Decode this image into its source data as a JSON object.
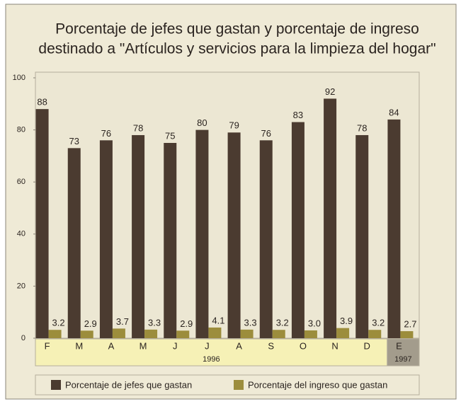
{
  "chart_data": {
    "type": "bar",
    "title": [
      "Porcentaje de jefes que gastan y porcentaje de ingreso",
      "destinado a \"Artículos y servicios para la limpieza del hogar\""
    ],
    "categories": [
      "F",
      "M",
      "A",
      "M",
      "J",
      "J",
      "A",
      "S",
      "O",
      "N",
      "D",
      "E"
    ],
    "x_groups": [
      {
        "label": "1996",
        "span": 11
      },
      {
        "label": "1997",
        "span": 1
      }
    ],
    "series": [
      {
        "name": "Porcentaje de jefes que gastan",
        "color": "#4b3b30",
        "values": [
          88,
          73,
          76,
          78,
          75,
          80,
          79,
          76,
          83,
          92,
          78,
          84
        ]
      },
      {
        "name": "Porcentaje del ingreso que gastan",
        "color": "#9c8d3c",
        "values": [
          3.2,
          2.9,
          3.7,
          3.3,
          2.9,
          4.1,
          3.3,
          3.2,
          3.0,
          3.9,
          3.2,
          2.7
        ],
        "value_labels": [
          "3.2",
          "2.9",
          "3.7",
          "3.3",
          "2.9",
          "4.1",
          "3.3",
          "3.2",
          "3.0",
          "3.9",
          "3.2",
          "2.7"
        ]
      }
    ],
    "ylim": [
      0,
      100
    ],
    "yticks": [
      0,
      20,
      40,
      60,
      80,
      100
    ]
  }
}
